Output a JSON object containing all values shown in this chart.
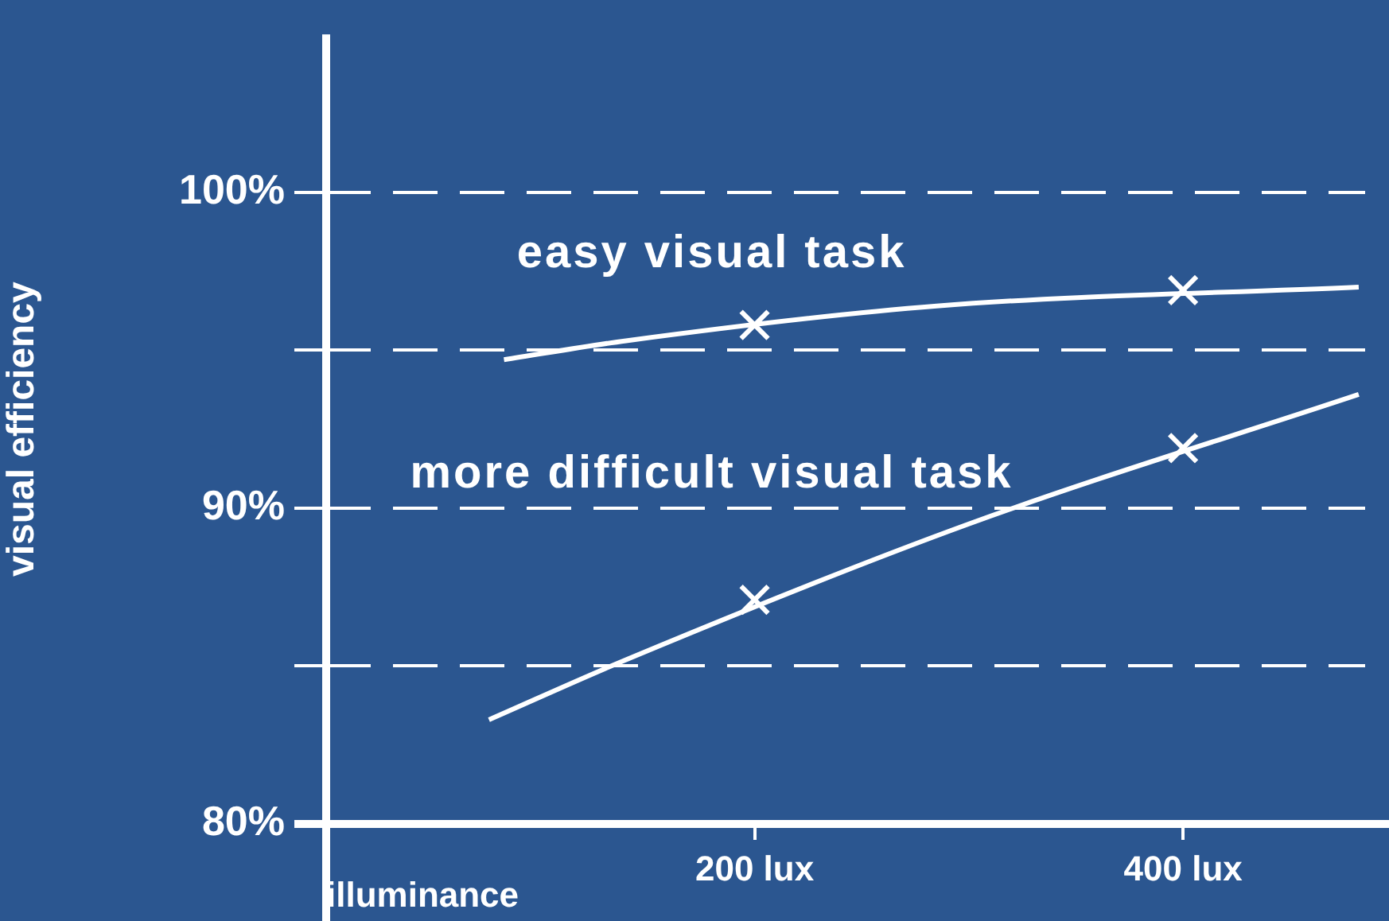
{
  "chart_data": {
    "type": "line",
    "xlabel": "illuminance",
    "ylabel": "visual efficiency",
    "xlim": [
      0,
      485
    ],
    "ylim": [
      80,
      105
    ],
    "xticks": [
      {
        "value": 200,
        "label": "200 lux"
      },
      {
        "value": 400,
        "label": "400 lux"
      }
    ],
    "yticks": [
      {
        "value": 80,
        "label": "80%"
      },
      {
        "value": 85,
        "label": null
      },
      {
        "value": 90,
        "label": "90%"
      },
      {
        "value": 95,
        "label": null
      },
      {
        "value": 100,
        "label": "100%"
      }
    ],
    "grid": "y",
    "line_style": "solid",
    "marker": "none",
    "legend": false,
    "series": [
      {
        "name": "easy visual task",
        "color": "#ffffff",
        "x": [
          83,
          140,
          285,
          482
        ],
        "values": [
          94.7,
          95.3,
          96.4,
          97.0
        ]
      },
      {
        "name": "more difficult visual task",
        "color": "#ffffff",
        "x": [
          76,
          140,
          300,
          482
        ],
        "values": [
          83.3,
          85.2,
          89.5,
          93.6
        ]
      },
      {
        "type": "scatter",
        "marker": "cross",
        "color": "#ffffff",
        "x": [
          200,
          400
        ],
        "values": [
          95.8,
          96.9
        ]
      },
      {
        "type": "scatter",
        "marker": "cross",
        "color": "#ffffff",
        "x": [
          200,
          400
        ],
        "values": [
          87.1,
          91.9
        ]
      }
    ]
  }
}
